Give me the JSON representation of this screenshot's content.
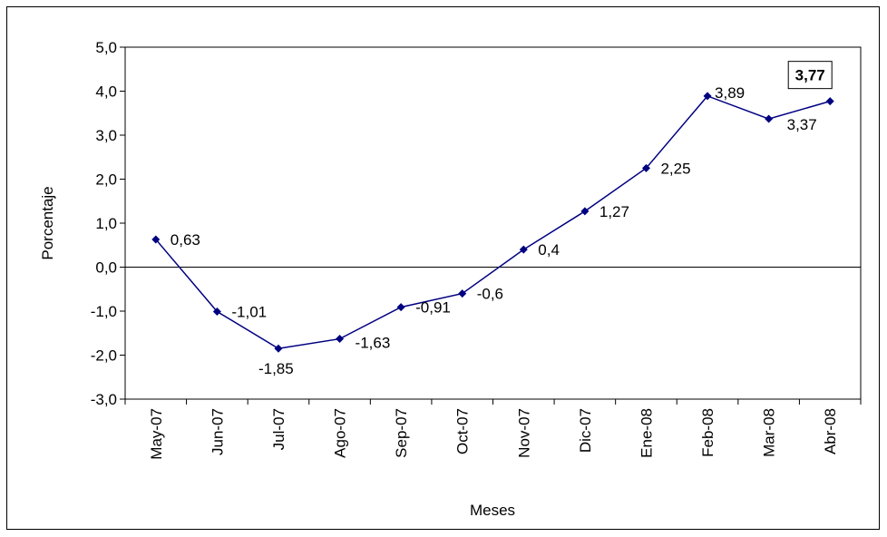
{
  "chart_data": {
    "type": "line",
    "title": "",
    "xlabel": "Meses",
    "ylabel": "Porcentaje",
    "ylim": [
      -3.0,
      5.0
    ],
    "y_ticks": [
      "5,0",
      "4,0",
      "3,0",
      "2,0",
      "1,0",
      "0,0",
      "-1,0",
      "-2,0",
      "-3,0"
    ],
    "grid": false,
    "legend": "none",
    "categories": [
      "May-07",
      "Jun-07",
      "Jul-07",
      "Ago-07",
      "Sep-07",
      "Oct-07",
      "Nov-07",
      "Dic-07",
      "Ene-08",
      "Feb-08",
      "Mar-08",
      "Abr-08"
    ],
    "series": [
      {
        "values": [
          0.63,
          -1.01,
          -1.85,
          -1.63,
          -0.91,
          -0.6,
          0.4,
          1.27,
          2.25,
          3.89,
          3.37,
          3.77
        ],
        "labels": [
          "0,63",
          "-1,01",
          "-1,85",
          "-1,63",
          "-0,91",
          "-0,6",
          "0,4",
          "1,27",
          "2,25",
          "3,89",
          "3,37",
          "3,77"
        ],
        "color": "#000080"
      }
    ],
    "highlight_last_label": true
  }
}
